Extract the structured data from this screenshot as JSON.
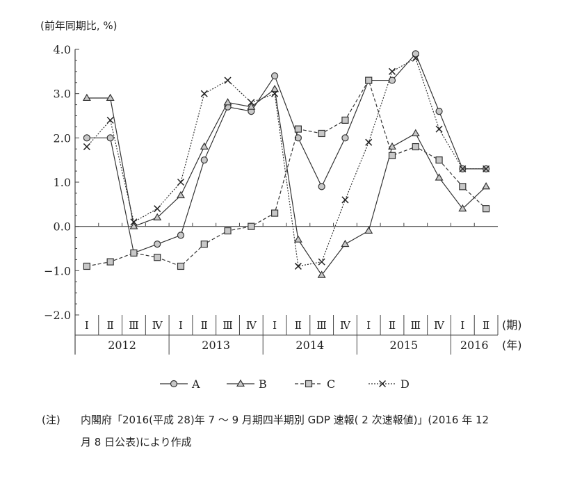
{
  "chart_data": {
    "type": "line",
    "yaxis_label": "(前年同期比, %)",
    "ylim": [
      -2.0,
      4.0
    ],
    "ytick_labels": [
      "4.0",
      "3.0",
      "2.0",
      "1.0",
      "0.0",
      "−1.0",
      "−2.0"
    ],
    "categories": [
      "I",
      "II",
      "III",
      "IV",
      "I",
      "II",
      "III",
      "IV",
      "I",
      "II",
      "III",
      "IV",
      "I",
      "II",
      "III",
      "IV",
      "I",
      "II"
    ],
    "quarter_labels": [
      "Ⅰ",
      "Ⅱ",
      "Ⅲ",
      "Ⅳ",
      "Ⅰ",
      "Ⅱ",
      "Ⅲ",
      "Ⅳ",
      "Ⅰ",
      "Ⅱ",
      "Ⅲ",
      "Ⅳ",
      "Ⅰ",
      "Ⅱ",
      "Ⅲ",
      "Ⅳ",
      "Ⅰ",
      "Ⅱ"
    ],
    "years": [
      {
        "label": "2012",
        "start": 0,
        "end": 3
      },
      {
        "label": "2013",
        "start": 4,
        "end": 7
      },
      {
        "label": "2014",
        "start": 8,
        "end": 11
      },
      {
        "label": "2015",
        "start": 12,
        "end": 15
      },
      {
        "label": "2016",
        "start": 16,
        "end": 17
      }
    ],
    "period_unit": "(期)",
    "year_unit": "(年)",
    "series": [
      {
        "name": "A",
        "marker": "circle",
        "dash": "solid",
        "values": [
          2.0,
          2.0,
          -0.6,
          -0.4,
          -0.2,
          1.5,
          2.7,
          2.6,
          3.4,
          2.0,
          0.9,
          2.0,
          3.3,
          3.3,
          3.9,
          2.6,
          1.3,
          1.3
        ]
      },
      {
        "name": "B",
        "marker": "triangle",
        "dash": "solid",
        "values": [
          2.9,
          2.9,
          0.0,
          0.2,
          0.7,
          1.8,
          2.8,
          2.7,
          3.1,
          -0.3,
          -1.1,
          -0.4,
          -0.1,
          1.8,
          2.1,
          1.1,
          0.4,
          0.9
        ]
      },
      {
        "name": "C",
        "marker": "square",
        "dash": "dashed",
        "values": [
          -0.9,
          -0.8,
          -0.6,
          -0.7,
          -0.9,
          -0.4,
          -0.1,
          0.0,
          0.3,
          2.2,
          2.1,
          2.4,
          3.3,
          1.6,
          1.8,
          1.5,
          0.9,
          0.4
        ]
      },
      {
        "name": "D",
        "marker": "x",
        "dash": "dotted",
        "values": [
          1.8,
          2.4,
          0.1,
          0.4,
          1.0,
          3.0,
          3.3,
          2.8,
          3.0,
          -0.9,
          -0.8,
          0.6,
          1.9,
          3.5,
          3.8,
          2.2,
          1.3,
          1.3
        ]
      }
    ],
    "grid": false,
    "legend_position": "bottom"
  },
  "note": {
    "label": "(注)",
    "line1": "内閣府「2016(平成 28)年 7 ～ 9 月期四半期別 GDP 速報( 2 次速報値)」(2016 年 12",
    "line2": "月 8 日公表)により作成"
  }
}
